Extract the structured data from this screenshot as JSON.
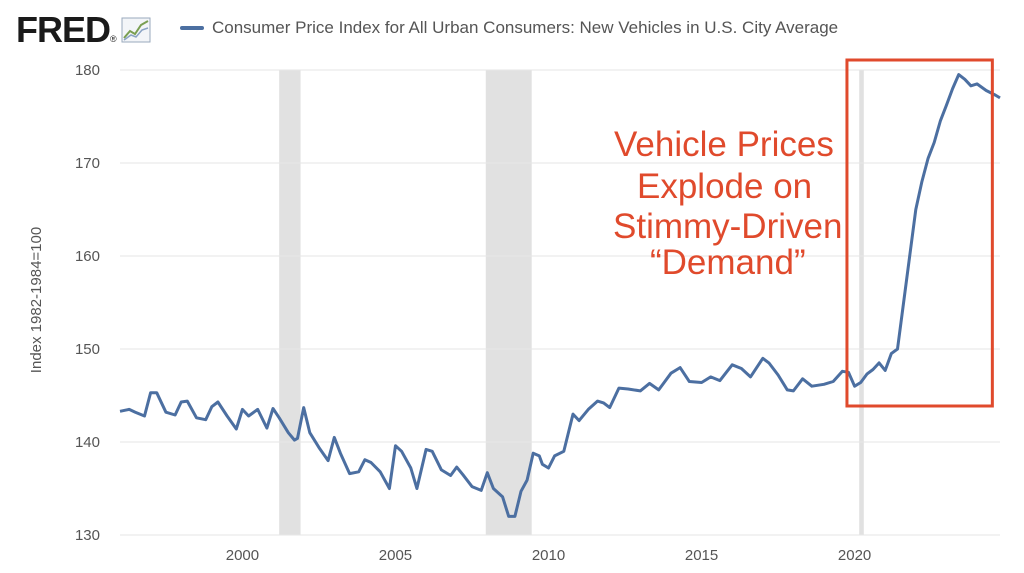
{
  "header": {
    "logo_text": "FRED",
    "logo_mark": "®",
    "logo_icon": "line-chart-icon",
    "series_title": "Consumer Price Index for All Urban Consumers: New Vehicles in U.S. City Average"
  },
  "annotation": {
    "lines": [
      "Vehicle Prices",
      "Explode on",
      "Stimmy-Driven",
      "“Demand”"
    ],
    "color": "#e04a2c"
  },
  "colors": {
    "series": "#4c6fa1",
    "recession": "#e1e1e1",
    "grid": "#e6e6e6",
    "highlight_box": "#e04a2c"
  },
  "chart_data": {
    "type": "line",
    "ylabel": "Index 1982-1984=100",
    "xlim": [
      1996.0,
      2024.75
    ],
    "ylim": [
      130,
      180
    ],
    "yticks": [
      130,
      140,
      150,
      160,
      170,
      180
    ],
    "xticks": [
      2000,
      2005,
      2010,
      2015,
      2020
    ],
    "grid": "horizontal",
    "recessions": [
      [
        2001.2,
        2001.9
      ],
      [
        2007.95,
        2009.45
      ],
      [
        2020.15,
        2020.3
      ]
    ],
    "highlight_box": [
      2019.75,
      2024.5
    ],
    "series": [
      {
        "name": "Consumer Price Index for All Urban Consumers: New Vehicles in U.S. City Average",
        "x": [
          1996.0,
          1996.3,
          1996.5,
          1996.8,
          1997.0,
          1997.2,
          1997.5,
          1997.8,
          1998.0,
          1998.2,
          1998.5,
          1998.8,
          1999.0,
          1999.2,
          1999.5,
          1999.8,
          2000.0,
          2000.2,
          2000.5,
          2000.8,
          2001.0,
          2001.2,
          2001.5,
          2001.7,
          2001.8,
          2002.0,
          2002.2,
          2002.5,
          2002.8,
          2003.0,
          2003.2,
          2003.5,
          2003.8,
          2004.0,
          2004.2,
          2004.5,
          2004.8,
          2005.0,
          2005.2,
          2005.5,
          2005.7,
          2006.0,
          2006.2,
          2006.5,
          2006.8,
          2007.0,
          2007.2,
          2007.5,
          2007.8,
          2008.0,
          2008.2,
          2008.5,
          2008.7,
          2008.9,
          2009.1,
          2009.3,
          2009.5,
          2009.7,
          2009.8,
          2010.0,
          2010.2,
          2010.5,
          2010.8,
          2011.0,
          2011.3,
          2011.6,
          2011.8,
          2012.0,
          2012.3,
          2012.6,
          2013.0,
          2013.3,
          2013.6,
          2014.0,
          2014.3,
          2014.6,
          2015.0,
          2015.3,
          2015.6,
          2016.0,
          2016.3,
          2016.6,
          2017.0,
          2017.2,
          2017.5,
          2017.8,
          2018.0,
          2018.3,
          2018.6,
          2019.0,
          2019.3,
          2019.6,
          2019.8,
          2020.0,
          2020.2,
          2020.4,
          2020.6,
          2020.8,
          2021.0,
          2021.2,
          2021.4,
          2021.6,
          2021.8,
          2022.0,
          2022.2,
          2022.4,
          2022.6,
          2022.8,
          2023.0,
          2023.2,
          2023.4,
          2023.6,
          2023.8,
          2024.0,
          2024.3,
          2024.6,
          2024.75
        ],
        "values": [
          143.3,
          143.5,
          143.2,
          142.8,
          145.3,
          145.3,
          143.2,
          142.9,
          144.3,
          144.4,
          142.6,
          142.4,
          143.8,
          144.3,
          142.8,
          141.4,
          143.5,
          142.8,
          143.5,
          141.5,
          143.6,
          142.6,
          141.0,
          140.2,
          140.4,
          143.7,
          141.0,
          139.4,
          138.0,
          140.5,
          138.8,
          136.6,
          136.8,
          138.1,
          137.8,
          136.8,
          135.0,
          139.6,
          139.0,
          137.2,
          135.0,
          139.2,
          139.0,
          137.0,
          136.4,
          137.3,
          136.5,
          135.2,
          134.8,
          136.7,
          135.0,
          134.1,
          132.0,
          132.0,
          134.7,
          135.9,
          138.8,
          138.5,
          137.6,
          137.2,
          138.5,
          139.0,
          143.0,
          142.3,
          143.5,
          144.4,
          144.2,
          143.7,
          145.8,
          145.7,
          145.5,
          146.3,
          145.6,
          147.4,
          148.0,
          146.5,
          146.4,
          147.0,
          146.6,
          148.3,
          147.9,
          147.0,
          149.0,
          148.5,
          147.2,
          145.6,
          145.5,
          146.8,
          146.0,
          146.2,
          146.5,
          147.6,
          147.5,
          146.0,
          146.4,
          147.3,
          147.8,
          148.5,
          147.7,
          149.5,
          150.0,
          155.0,
          160.0,
          165.0,
          168.0,
          170.5,
          172.2,
          174.5,
          176.2,
          178.0,
          179.5,
          179.0,
          178.3,
          178.5,
          177.8,
          177.3,
          177.0
        ]
      }
    ]
  }
}
